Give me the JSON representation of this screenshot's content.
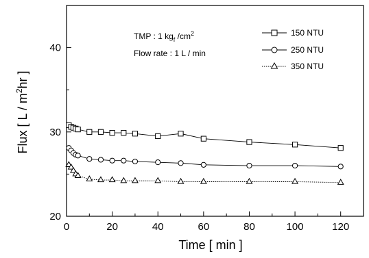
{
  "chart_data": {
    "type": "line",
    "xlabel": "Time [ min ]",
    "ylabel_prefix": "Flux [ L / m",
    "ylabel_sup": "2",
    "ylabel_suffix": "hr ]",
    "xlim": [
      0,
      130
    ],
    "ylim": [
      20,
      45
    ],
    "xticks": [
      0,
      20,
      40,
      60,
      80,
      100,
      120
    ],
    "yticks": [
      20,
      30,
      40
    ],
    "annotations": {
      "tmp_prefix": "TMP : 1 kg",
      "tmp_sub": "f",
      "tmp_unit": " /cm",
      "tmp_sup": "2",
      "flow_rate": "Flow rate : 1 L / min"
    },
    "series": [
      {
        "name": "150 NTU",
        "marker": "square",
        "x": [
          1,
          2,
          3,
          4,
          5,
          10,
          15,
          20,
          25,
          30,
          40,
          50,
          60,
          80,
          100,
          120
        ],
        "y": [
          30.8,
          30.6,
          30.5,
          30.4,
          30.3,
          30.0,
          30.0,
          29.9,
          29.9,
          29.8,
          29.5,
          29.8,
          29.2,
          28.8,
          28.5,
          28.1
        ]
      },
      {
        "name": "250 NTU",
        "marker": "circle",
        "x": [
          1,
          2,
          3,
          4,
          5,
          10,
          15,
          20,
          25,
          30,
          40,
          50,
          60,
          80,
          100,
          120
        ],
        "y": [
          28.1,
          27.8,
          27.5,
          27.3,
          27.2,
          26.8,
          26.7,
          26.6,
          26.6,
          26.5,
          26.4,
          26.3,
          26.1,
          26.0,
          26.0,
          25.9
        ]
      },
      {
        "name": "350 NTU",
        "marker": "triangle",
        "x": [
          1,
          2,
          3,
          4,
          5,
          10,
          15,
          20,
          25,
          30,
          40,
          50,
          60,
          80,
          100,
          120
        ],
        "y": [
          26.1,
          25.8,
          25.4,
          25.0,
          24.8,
          24.4,
          24.3,
          24.3,
          24.2,
          24.2,
          24.2,
          24.1,
          24.1,
          24.1,
          24.1,
          24.0
        ]
      }
    ]
  }
}
